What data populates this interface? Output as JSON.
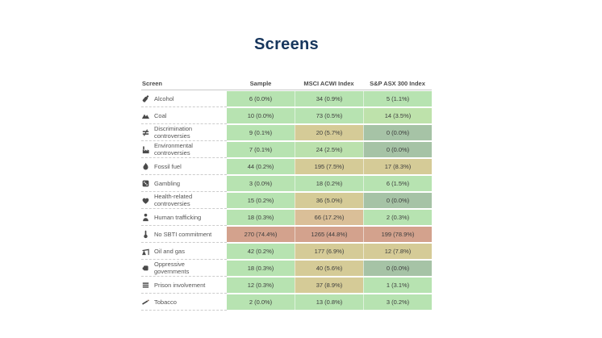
{
  "page": {
    "title": "Screens",
    "title_color": "#17365d",
    "background": "#ffffff"
  },
  "palette": {
    "low_green": "#b7e3b1",
    "zero_sage": "#a6c3a6",
    "mid_khaki": "#d5cb97",
    "high_tan": "#dabf98",
    "very_high_salmon": "#d3a28d",
    "header_rule": "#c8c8c8"
  },
  "table": {
    "columns": [
      "Screen",
      "Sample",
      "MSCI ACWI Index",
      "S&P ASX 300 Index"
    ],
    "rows": [
      {
        "icon": "alcohol-icon",
        "label": "Alcohol",
        "cells": [
          {
            "text": "6 (0.0%)",
            "color": "#b7e3b1"
          },
          {
            "text": "34 (0.9%)",
            "color": "#b7e3b1"
          },
          {
            "text": "5 (1.1%)",
            "color": "#b7e3b1"
          }
        ]
      },
      {
        "icon": "coal-icon",
        "label": "Coal",
        "cells": [
          {
            "text": "10 (0.0%)",
            "color": "#b7e3b1"
          },
          {
            "text": "73 (0.5%)",
            "color": "#b7e3b1"
          },
          {
            "text": "14 (3.5%)",
            "color": "#bee2ab"
          }
        ]
      },
      {
        "icon": "discrimination-icon",
        "label": "Discrimination controversies",
        "cells": [
          {
            "text": "9 (0.1%)",
            "color": "#b7e3b1"
          },
          {
            "text": "20 (5.7%)",
            "color": "#d5cb97"
          },
          {
            "text": "0 (0.0%)",
            "color": "#a6c3a6"
          }
        ]
      },
      {
        "icon": "environment-icon",
        "label": "Environmental controversies",
        "cells": [
          {
            "text": "7 (0.1%)",
            "color": "#b7e3b1"
          },
          {
            "text": "24 (2.5%)",
            "color": "#bbe1ad"
          },
          {
            "text": "0 (0.0%)",
            "color": "#a6c3a6"
          }
        ]
      },
      {
        "icon": "fossil-fuel-icon",
        "label": "Fossil fuel",
        "cells": [
          {
            "text": "44 (0.2%)",
            "color": "#b7e3b1"
          },
          {
            "text": "195 (7.5%)",
            "color": "#d5cb97"
          },
          {
            "text": "17 (8.3%)",
            "color": "#d5cb97"
          }
        ]
      },
      {
        "icon": "gambling-icon",
        "label": "Gambling",
        "cells": [
          {
            "text": "3 (0.0%)",
            "color": "#b7e3b1"
          },
          {
            "text": "18 (0.2%)",
            "color": "#b7e3b1"
          },
          {
            "text": "6 (1.5%)",
            "color": "#b7e3b1"
          }
        ]
      },
      {
        "icon": "health-icon",
        "label": "Health-related controversies",
        "cells": [
          {
            "text": "15 (0.2%)",
            "color": "#b7e3b1"
          },
          {
            "text": "36 (5.0%)",
            "color": "#d5cb97"
          },
          {
            "text": "0 (0.0%)",
            "color": "#a6c3a6"
          }
        ]
      },
      {
        "icon": "human-trafficking-icon",
        "label": "Human trafficking",
        "cells": [
          {
            "text": "18 (0.3%)",
            "color": "#b7e3b1"
          },
          {
            "text": "66 (17.2%)",
            "color": "#dabf98"
          },
          {
            "text": "2 (0.3%)",
            "color": "#b7e3b1"
          }
        ]
      },
      {
        "icon": "sbti-icon",
        "label": "No SBTI commitment",
        "cells": [
          {
            "text": "270 (74.4%)",
            "color": "#d3a28d"
          },
          {
            "text": "1265 (44.8%)",
            "color": "#d3a28d"
          },
          {
            "text": "199 (78.9%)",
            "color": "#d3a28d"
          }
        ]
      },
      {
        "icon": "oil-gas-icon",
        "label": "Oil and gas",
        "cells": [
          {
            "text": "42 (0.2%)",
            "color": "#b7e3b1"
          },
          {
            "text": "177 (6.9%)",
            "color": "#d5cb97"
          },
          {
            "text": "12 (7.8%)",
            "color": "#d5cb97"
          }
        ]
      },
      {
        "icon": "oppressive-icon",
        "label": "Oppressive governments",
        "cells": [
          {
            "text": "18 (0.3%)",
            "color": "#b7e3b1"
          },
          {
            "text": "40 (5.6%)",
            "color": "#d5cb97"
          },
          {
            "text": "0 (0.0%)",
            "color": "#a6c3a6"
          }
        ]
      },
      {
        "icon": "prison-icon",
        "label": "Prison involvement",
        "cells": [
          {
            "text": "12 (0.3%)",
            "color": "#b7e3b1"
          },
          {
            "text": "37 (8.9%)",
            "color": "#d5cb97"
          },
          {
            "text": "1 (3.1%)",
            "color": "#b7e3b1"
          }
        ]
      },
      {
        "icon": "tobacco-icon",
        "label": "Tobacco",
        "cells": [
          {
            "text": "2 (0.0%)",
            "color": "#b7e3b1"
          },
          {
            "text": "13 (0.8%)",
            "color": "#b7e3b1"
          },
          {
            "text": "3 (0.2%)",
            "color": "#b7e3b1"
          }
        ]
      }
    ]
  },
  "chart_data": {
    "type": "table",
    "title": "Screens",
    "heatmap": true,
    "columns": [
      "Screen",
      "Sample",
      "MSCI ACWI Index",
      "S&P ASX 300 Index"
    ],
    "rows": [
      [
        "Alcohol",
        "6 (0.0%)",
        "34 (0.9%)",
        "5 (1.1%)"
      ],
      [
        "Coal",
        "10 (0.0%)",
        "73 (0.5%)",
        "14 (3.5%)"
      ],
      [
        "Discrimination controversies",
        "9 (0.1%)",
        "20 (5.7%)",
        "0 (0.0%)"
      ],
      [
        "Environmental controversies",
        "7 (0.1%)",
        "24 (2.5%)",
        "0 (0.0%)"
      ],
      [
        "Fossil fuel",
        "44 (0.2%)",
        "195 (7.5%)",
        "17 (8.3%)"
      ],
      [
        "Gambling",
        "3 (0.0%)",
        "18 (0.2%)",
        "6 (1.5%)"
      ],
      [
        "Health-related controversies",
        "15 (0.2%)",
        "36 (5.0%)",
        "0 (0.0%)"
      ],
      [
        "Human trafficking",
        "18 (0.3%)",
        "66 (17.2%)",
        "2 (0.3%)"
      ],
      [
        "No SBTI commitment",
        "270 (74.4%)",
        "1265 (44.8%)",
        "199 (78.9%)"
      ],
      [
        "Oil and gas",
        "42 (0.2%)",
        "177 (6.9%)",
        "12 (7.8%)"
      ],
      [
        "Oppressive governments",
        "18 (0.3%)",
        "40 (5.6%)",
        "0 (0.0%)"
      ],
      [
        "Prison involvement",
        "12 (0.3%)",
        "37 (8.9%)",
        "1 (3.1%)"
      ],
      [
        "Tobacco",
        "2 (0.0%)",
        "13 (0.8%)",
        "3 (0.2%)"
      ]
    ]
  }
}
